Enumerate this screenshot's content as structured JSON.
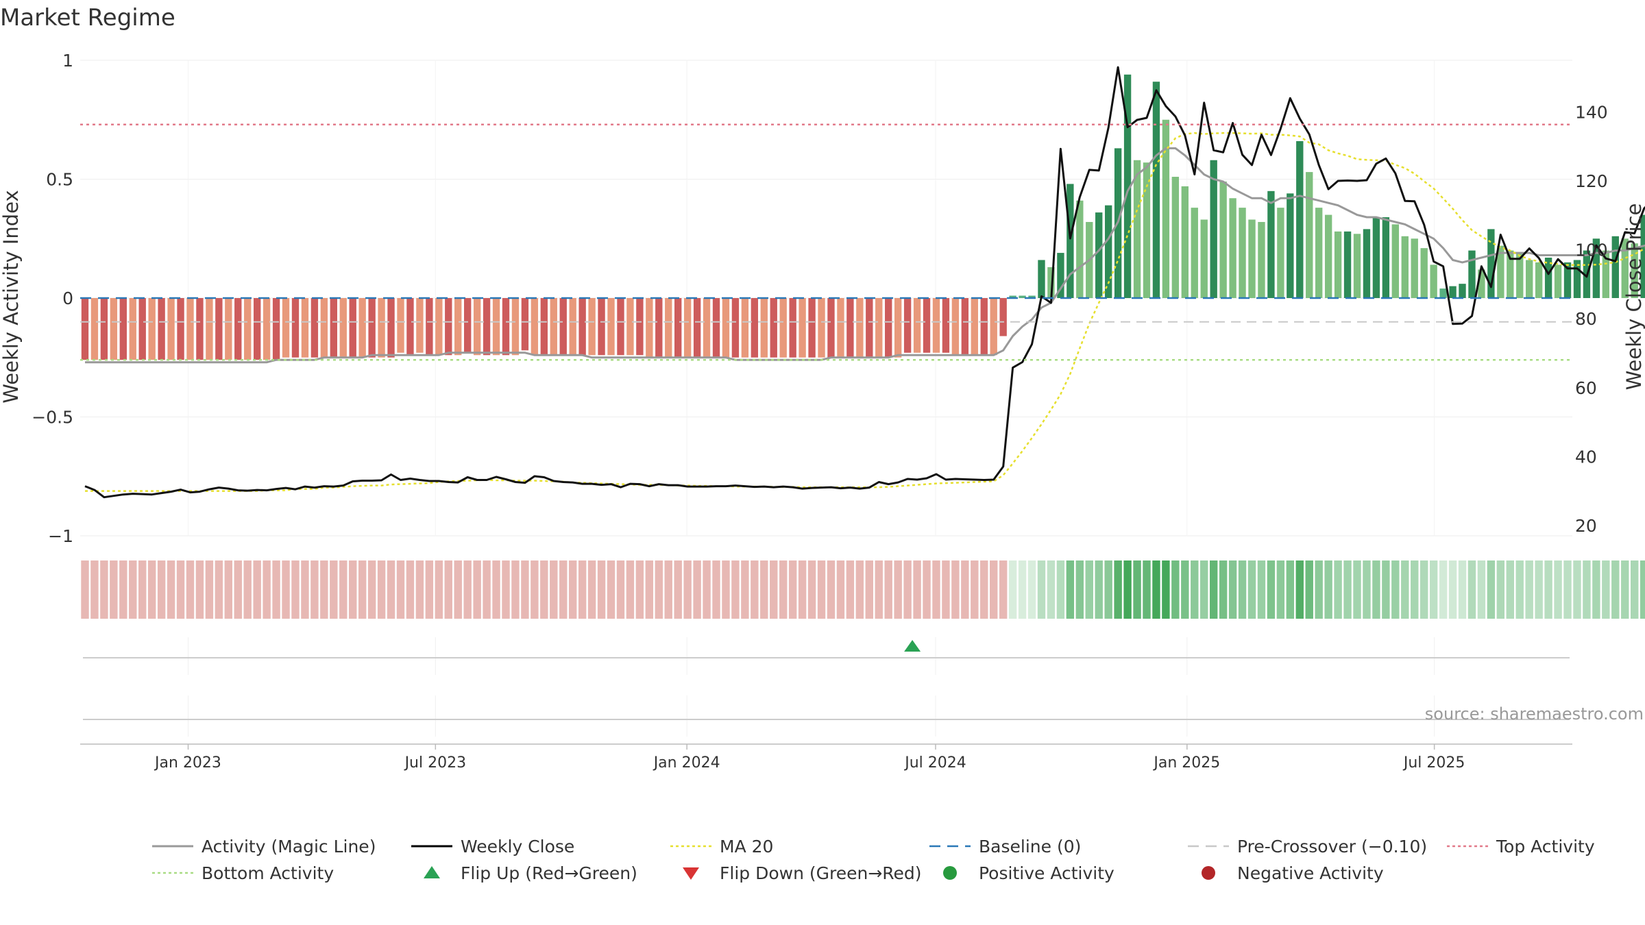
{
  "title": "Market Regime",
  "source": "source: sharemaestro.com",
  "chart_data": {
    "type": "bar",
    "xlim": [
      "2022-10-14",
      "2025-10-10"
    ],
    "x_ticks": [
      "Jan 2023",
      "Jul 2023",
      "Jan 2024",
      "Jul 2024",
      "Jan 2025",
      "Jul 2025"
    ],
    "x_tick_dates": [
      "2023-01-01",
      "2023-07-01",
      "2024-01-01",
      "2024-07-01",
      "2025-01-01",
      "2025-07-01"
    ],
    "left_axis": {
      "label": "Weekly Activity Index",
      "range": [
        -1.0,
        1.0
      ],
      "ticks": [
        1,
        0.5,
        0,
        -0.5,
        -1
      ],
      "tick_labels": [
        "1",
        "0.5",
        "0",
        "−0.5",
        "−1"
      ]
    },
    "right_axis": {
      "label": "Weekly Close Price",
      "range": [
        17,
        155
      ],
      "ticks": [
        140,
        120,
        100,
        80,
        60,
        40,
        20
      ],
      "tick_labels": [
        "140",
        "120",
        "100",
        "80",
        "60",
        "40",
        "20"
      ]
    },
    "reference_lines": {
      "baseline": 0,
      "pre_crossover": -0.1,
      "top_activity": 0.73,
      "bottom_activity": -0.26
    },
    "flip_up_dates": [
      "2024-06-14"
    ],
    "activity_index": [
      -0.26,
      -0.26,
      -0.26,
      -0.26,
      -0.26,
      -0.26,
      -0.26,
      -0.26,
      -0.26,
      -0.26,
      -0.26,
      -0.26,
      -0.26,
      -0.26,
      -0.26,
      -0.26,
      -0.26,
      -0.26,
      -0.26,
      -0.26,
      -0.26,
      -0.25,
      -0.25,
      -0.25,
      -0.25,
      -0.25,
      -0.25,
      -0.25,
      -0.25,
      -0.25,
      -0.25,
      -0.25,
      -0.25,
      -0.23,
      -0.24,
      -0.23,
      -0.24,
      -0.24,
      -0.24,
      -0.24,
      -0.23,
      -0.24,
      -0.24,
      -0.24,
      -0.24,
      -0.24,
      -0.22,
      -0.24,
      -0.24,
      -0.24,
      -0.24,
      -0.24,
      -0.24,
      -0.24,
      -0.24,
      -0.24,
      -0.24,
      -0.24,
      -0.24,
      -0.25,
      -0.25,
      -0.25,
      -0.25,
      -0.25,
      -0.25,
      -0.25,
      -0.25,
      -0.25,
      -0.25,
      -0.25,
      -0.25,
      -0.25,
      -0.25,
      -0.25,
      -0.25,
      -0.25,
      -0.25,
      -0.25,
      -0.25,
      -0.25,
      -0.25,
      -0.25,
      -0.25,
      -0.25,
      -0.25,
      -0.25,
      -0.23,
      -0.23,
      -0.23,
      -0.23,
      -0.23,
      -0.24,
      -0.24,
      -0.24,
      -0.24,
      -0.24,
      -0.16,
      0.01,
      0.01,
      0.01,
      0.16,
      0.13,
      0.19,
      0.48,
      0.41,
      0.32,
      0.36,
      0.39,
      0.63,
      0.94,
      0.58,
      0.57,
      0.91,
      0.75,
      0.51,
      0.47,
      0.38,
      0.33,
      0.58,
      0.49,
      0.42,
      0.38,
      0.33,
      0.32,
      0.45,
      0.38,
      0.44,
      0.66,
      0.53,
      0.38,
      0.35,
      0.28,
      0.28,
      0.27,
      0.29,
      0.34,
      0.34,
      0.31,
      0.26,
      0.25,
      0.21,
      0.14,
      0.04,
      0.05,
      0.06,
      0.2,
      0.12,
      0.29,
      0.22,
      0.2,
      0.19,
      0.16,
      0.15,
      0.17,
      0.14,
      0.15,
      0.16,
      0.2,
      0.25,
      0.2,
      0.26,
      0.25,
      0.23,
      0.35,
      0.22,
      0.2,
      0.18,
      0.18
    ],
    "magic_line": [
      -0.27,
      -0.27,
      -0.27,
      -0.27,
      -0.27,
      -0.27,
      -0.27,
      -0.27,
      -0.27,
      -0.27,
      -0.27,
      -0.27,
      -0.27,
      -0.27,
      -0.27,
      -0.27,
      -0.27,
      -0.27,
      -0.27,
      -0.27,
      -0.26,
      -0.26,
      -0.26,
      -0.26,
      -0.26,
      -0.25,
      -0.25,
      -0.25,
      -0.25,
      -0.25,
      -0.24,
      -0.24,
      -0.24,
      -0.24,
      -0.24,
      -0.24,
      -0.24,
      -0.24,
      -0.23,
      -0.23,
      -0.23,
      -0.23,
      -0.23,
      -0.23,
      -0.23,
      -0.23,
      -0.23,
      -0.24,
      -0.24,
      -0.24,
      -0.24,
      -0.24,
      -0.24,
      -0.25,
      -0.25,
      -0.25,
      -0.25,
      -0.25,
      -0.25,
      -0.25,
      -0.25,
      -0.25,
      -0.25,
      -0.25,
      -0.25,
      -0.25,
      -0.25,
      -0.25,
      -0.26,
      -0.26,
      -0.26,
      -0.26,
      -0.26,
      -0.26,
      -0.26,
      -0.26,
      -0.26,
      -0.26,
      -0.25,
      -0.25,
      -0.25,
      -0.25,
      -0.25,
      -0.25,
      -0.25,
      -0.24,
      -0.24,
      -0.24,
      -0.24,
      -0.24,
      -0.24,
      -0.24,
      -0.24,
      -0.24,
      -0.24,
      -0.24,
      -0.22,
      -0.16,
      -0.12,
      -0.09,
      -0.04,
      -0.02,
      0.04,
      0.1,
      0.13,
      0.16,
      0.2,
      0.25,
      0.32,
      0.45,
      0.52,
      0.55,
      0.6,
      0.63,
      0.63,
      0.6,
      0.56,
      0.52,
      0.5,
      0.49,
      0.46,
      0.44,
      0.42,
      0.42,
      0.4,
      0.42,
      0.42,
      0.43,
      0.42,
      0.41,
      0.4,
      0.39,
      0.37,
      0.35,
      0.34,
      0.34,
      0.33,
      0.32,
      0.31,
      0.29,
      0.27,
      0.25,
      0.21,
      0.16,
      0.15,
      0.16,
      0.17,
      0.18,
      0.19,
      0.19,
      0.19,
      0.19,
      0.18,
      0.18,
      0.18,
      0.18,
      0.18,
      0.18,
      0.19,
      0.19,
      0.2,
      0.2,
      0.21,
      0.22,
      0.23,
      0.22,
      0.21,
      0.21
    ],
    "weekly_close": [
      31.4,
      30.3,
      28.2,
      28.6,
      29.0,
      29.2,
      29.1,
      29.0,
      29.4,
      29.8,
      30.4,
      29.6,
      29.8,
      30.5,
      31.0,
      30.7,
      30.2,
      30.1,
      30.3,
      30.2,
      30.6,
      30.9,
      30.5,
      31.3,
      31.0,
      31.4,
      31.3,
      31.6,
      32.8,
      33.0,
      33.0,
      33.1,
      34.8,
      33.2,
      33.6,
      33.2,
      32.9,
      32.9,
      32.6,
      32.5,
      34.0,
      33.2,
      33.2,
      34.1,
      33.4,
      32.6,
      32.4,
      34.3,
      34.0,
      32.9,
      32.6,
      32.5,
      32.1,
      32.1,
      31.8,
      32.0,
      31.1,
      32.1,
      32.0,
      31.4,
      32.0,
      31.7,
      31.7,
      31.3,
      31.3,
      31.3,
      31.4,
      31.4,
      31.6,
      31.4,
      31.2,
      31.3,
      31.1,
      31.3,
      31.1,
      30.7,
      30.9,
      31.0,
      31.1,
      30.8,
      31.0,
      30.7,
      31.0,
      32.6,
      32.0,
      32.5,
      33.5,
      33.3,
      33.7,
      34.9,
      33.3,
      33.5,
      33.4,
      33.3,
      33.2,
      33.3,
      37.1,
      65.8,
      67.4,
      72.6,
      86.5,
      84.6,
      129.3,
      103.3,
      115.3,
      123.2,
      123.0,
      135.5,
      153.0,
      135.6,
      137.7,
      138.3,
      146.3,
      141.7,
      138.7,
      133.2,
      121.9,
      142.7,
      128.9,
      128.3,
      136.8,
      127.6,
      124.6,
      133.4,
      127.5,
      135.2,
      144.0,
      138.1,
      133.5,
      124.6,
      117.6,
      120.0,
      120.1,
      120.0,
      120.2,
      125.0,
      126.5,
      122.2,
      114.2,
      114.1,
      107.3,
      96.6,
      95.2,
      78.5,
      78.6,
      80.8,
      95.2,
      89.2,
      104.4,
      97.4,
      97.4,
      100.4,
      97.6,
      93.0,
      97.3,
      94.6,
      94.6,
      92.2,
      101.3,
      97.5,
      96.7,
      105.1,
      104.8,
      112.0,
      114.8,
      109.8,
      105.8,
      101.6,
      102.1
    ],
    "ma20": [
      30.0,
      30.0,
      30.0,
      30.0,
      30.0,
      30.0,
      30.0,
      30.0,
      30.0,
      30.0,
      30.0,
      30.0,
      30.0,
      30.0,
      30.0,
      30.0,
      30.0,
      30.0,
      30.0,
      30.2,
      30.2,
      30.2,
      30.6,
      30.6,
      30.6,
      31.0,
      31.0,
      31.2,
      31.4,
      31.5,
      31.6,
      31.6,
      31.9,
      32.0,
      32.1,
      32.2,
      32.3,
      32.6,
      32.8,
      32.9,
      33.0,
      33.1,
      33.2,
      33.1,
      33.1,
      33.0,
      33.0,
      33.0,
      32.9,
      32.8,
      32.7,
      32.5,
      32.4,
      32.3,
      32.2,
      32.1,
      32.0,
      31.9,
      31.8,
      31.8,
      31.8,
      31.7,
      31.6,
      31.6,
      31.5,
      31.5,
      31.4,
      31.4,
      31.3,
      31.3,
      31.3,
      31.3,
      31.2,
      31.2,
      31.2,
      31.1,
      31.1,
      31.1,
      31.1,
      31.1,
      31.1,
      31.1,
      31.1,
      31.1,
      31.2,
      31.4,
      31.6,
      31.8,
      32.0,
      32.2,
      32.3,
      32.4,
      32.5,
      32.6,
      32.7,
      32.8,
      34.6,
      38.0,
      41.6,
      45.4,
      49.4,
      53.6,
      58.1,
      64.0,
      71.4,
      78.6,
      84.6,
      90.4,
      97.0,
      104.3,
      111.6,
      118.4,
      124.8,
      128.9,
      132.4,
      133.6,
      133.9,
      133.6,
      133.8,
      133.9,
      133.9,
      133.8,
      133.7,
      133.8,
      133.4,
      133.4,
      133.2,
      132.9,
      131.1,
      130.6,
      128.9,
      128.0,
      127.3,
      126.3,
      126.1,
      126.0,
      125.8,
      124.7,
      123.7,
      122.1,
      119.9,
      117.8,
      114.9,
      111.9,
      108.6,
      105.7,
      103.9,
      102.2,
      100.7,
      99.8,
      98.3,
      97.3,
      96.6,
      96.2,
      95.9,
      95.6,
      95.6,
      95.6,
      95.7,
      96.0,
      96.4,
      97.6,
      98.7,
      100.3,
      101.9,
      102.9,
      103.6,
      103.5
    ],
    "series": [
      {
        "name": "Activity (Magic Line)",
        "color": "#999999",
        "style": "solid"
      },
      {
        "name": "Weekly Close",
        "color": "#000000",
        "style": "solid"
      },
      {
        "name": "MA 20",
        "color": "#e6df2e",
        "style": "dotted"
      },
      {
        "name": "Baseline (0)",
        "color": "#2a78b7",
        "style": "dashed"
      },
      {
        "name": "Pre-Crossover (−0.10)",
        "color": "#c8c8c8",
        "style": "dashed"
      },
      {
        "name": "Top Activity",
        "color": "#e27a8a",
        "style": "dotted"
      },
      {
        "name": "Bottom Activity",
        "color": "#a9dc84",
        "style": "dotted"
      },
      {
        "name": "Flip Up (Red→Green)",
        "color": "#2aa254",
        "marker": "triangle-up"
      },
      {
        "name": "Flip Down (Green→Red)",
        "color": "#d93434",
        "marker": "triangle-down"
      },
      {
        "name": "Positive Activity",
        "color": "#279a3e",
        "marker": "circle"
      },
      {
        "name": "Negative Activity",
        "color": "#b32628",
        "marker": "circle"
      }
    ],
    "colors": {
      "neg_bar_dark": "#cd5c5c",
      "neg_bar_light": "#e8997b",
      "pos_bar_dark": "#2e8b57",
      "pos_bar_light": "#7fbf7f",
      "pos_bar_edge": "#58b080",
      "strip_negative": "#e7b8b4",
      "strip_positive": "#45a85a"
    }
  }
}
